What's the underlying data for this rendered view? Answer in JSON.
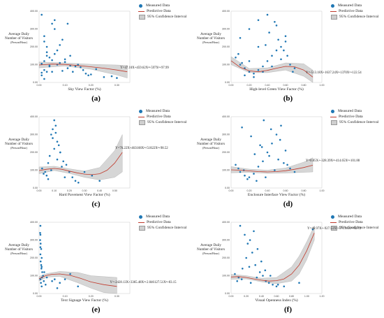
{
  "legend": {
    "measured": "Measured Data",
    "predictive": "Predictive Data",
    "ci": "95% Confidence Interval"
  },
  "ylabel": {
    "line1": "Average Daily",
    "line2": "Number of Visitors",
    "line3": "(Person/Hour)"
  },
  "colors": {
    "points": "#1f77b4",
    "curve": "#c0392b",
    "band": "#c8c8c8"
  },
  "chart_data": [
    {
      "type": "scatter",
      "label": "(a)",
      "xlabel": "Sky View Factor (%)",
      "equation": "Y=47.10X+459.62X²+597X³+97.99",
      "xlim": [
        0,
        0.35
      ],
      "ylim": [
        0,
        400
      ],
      "xticks": [
        "0.00",
        "0.10",
        "0.20",
        "0.30"
      ],
      "yticks": [
        "0.00",
        "100.00",
        "200.00",
        "300.00",
        "400.00"
      ],
      "curve": {
        "x": [
          0,
          0.05,
          0.1,
          0.15,
          0.2,
          0.25,
          0.3,
          0.34
        ],
        "y": [
          98,
          103,
          101,
          95,
          88,
          80,
          70,
          60
        ]
      },
      "band": {
        "x": [
          0,
          0.1,
          0.2,
          0.3,
          0.34
        ],
        "lower": [
          82,
          92,
          74,
          42,
          25
        ],
        "upper": [
          115,
          110,
          102,
          98,
          95
        ]
      },
      "points": {
        "x": [
          0.01,
          0.02,
          0.03,
          0.02,
          0.04,
          0.05,
          0.01,
          0.06,
          0.03,
          0.07,
          0.08,
          0.02,
          0.1,
          0.12,
          0.15,
          0.18,
          0.05,
          0.09,
          0.11,
          0.04,
          0.02,
          0.06,
          0.13,
          0.16,
          0.2,
          0.22,
          0.25,
          0.08,
          0.03,
          0.01,
          0.07,
          0.1,
          0.14,
          0.17,
          0.19,
          0.05,
          0.04,
          0.28,
          0.3,
          0.09,
          0.12,
          0.06,
          0.02,
          0.11,
          0.01,
          0.03
        ],
        "y": [
          380,
          260,
          150,
          120,
          90,
          60,
          40,
          300,
          200,
          180,
          110,
          70,
          130,
          95,
          100,
          50,
          330,
          240,
          80,
          140,
          20,
          160,
          60,
          85,
          45,
          75,
          30,
          210,
          170,
          55,
          100,
          115,
          90,
          70,
          40,
          125,
          95,
          35,
          25,
          65,
          150,
          350,
          230,
          330,
          105,
          60
        ]
      }
    },
    {
      "type": "scatter",
      "label": "(b)",
      "xlabel": "High-level Green View Factor (%)",
      "equation": "Y=-513.18X+1637.24X²-1370X³+122.54",
      "xlim": [
        0,
        1.0
      ],
      "ylim": [
        0,
        400
      ],
      "xticks": [
        "0.00",
        "0.20",
        "0.40",
        "0.60",
        "0.80",
        "1.00"
      ],
      "yticks": [
        "0.00",
        "100.00",
        "200.00",
        "300.00",
        "400.00"
      ],
      "curve": {
        "x": [
          0,
          0.1,
          0.2,
          0.3,
          0.4,
          0.5,
          0.6,
          0.7,
          0.8,
          0.9
        ],
        "y": [
          122,
          85,
          65,
          60,
          68,
          80,
          90,
          88,
          70,
          30
        ]
      },
      "band": {
        "x": [
          0,
          0.2,
          0.4,
          0.6,
          0.8,
          0.9
        ],
        "lower": [
          100,
          55,
          55,
          70,
          35,
          0
        ],
        "upper": [
          145,
          78,
          82,
          110,
          105,
          70
        ]
      },
      "points": {
        "x": [
          0.05,
          0.1,
          0.15,
          0.2,
          0.25,
          0.3,
          0.35,
          0.4,
          0.45,
          0.5,
          0.55,
          0.6,
          0.65,
          0.7,
          0.1,
          0.2,
          0.3,
          0.4,
          0.5,
          0.6,
          0.15,
          0.25,
          0.35,
          0.45,
          0.55,
          0.08,
          0.12,
          0.38,
          0.42,
          0.48,
          0.52,
          0.58,
          0.62,
          0.3,
          0.2,
          0.68
        ],
        "y": [
          140,
          100,
          80,
          60,
          50,
          70,
          90,
          120,
          150,
          180,
          200,
          230,
          100,
          80,
          250,
          300,
          350,
          380,
          320,
          260,
          40,
          30,
          60,
          90,
          130,
          160,
          110,
          210,
          280,
          340,
          240,
          180,
          150,
          200,
          120,
          60
        ]
      }
    },
    {
      "type": "scatter",
      "label": "(c)",
      "xlabel": "Hard Pavement View Factor (%)",
      "equation": "Y=76.22X+463168X²+51822X³+98.52",
      "xlim": [
        0,
        0.6
      ],
      "ylim": [
        0,
        400
      ],
      "xticks": [
        "0.00",
        "0.10",
        "0.20",
        "0.30",
        "0.40",
        "0.50"
      ],
      "yticks": [
        "0.00",
        "100.00",
        "200.00",
        "300.00",
        "400.00"
      ],
      "curve": {
        "x": [
          0,
          0.05,
          0.1,
          0.15,
          0.2,
          0.25,
          0.3,
          0.35,
          0.4,
          0.45,
          0.5,
          0.55
        ],
        "y": [
          98,
          105,
          110,
          105,
          95,
          85,
          78,
          75,
          80,
          100,
          140,
          200
        ]
      },
      "band": {
        "x": [
          0,
          0.1,
          0.2,
          0.3,
          0.4,
          0.5,
          0.55
        ],
        "lower": [
          80,
          98,
          82,
          60,
          45,
          60,
          90
        ],
        "upper": [
          118,
          122,
          108,
          95,
          115,
          210,
          300
        ]
      },
      "points": {
        "x": [
          0.02,
          0.04,
          0.06,
          0.08,
          0.1,
          0.12,
          0.14,
          0.16,
          0.18,
          0.2,
          0.22,
          0.24,
          0.26,
          0.05,
          0.07,
          0.09,
          0.11,
          0.13,
          0.15,
          0.03,
          0.06,
          0.1,
          0.12,
          0.08,
          0.17,
          0.3,
          0.35,
          0.4,
          0.09,
          0.11,
          0.14
        ],
        "y": [
          110,
          90,
          140,
          300,
          380,
          260,
          200,
          150,
          130,
          90,
          60,
          40,
          30,
          70,
          180,
          330,
          350,
          240,
          120,
          80,
          50,
          220,
          160,
          100,
          60,
          90,
          70,
          40,
          280,
          310,
          200
        ]
      }
    },
    {
      "type": "scatter",
      "label": "(d)",
      "xlabel": "Enclosure Interface View Factor (%)",
      "equation": "Y=0.85X+-328.39X²+414.65X³+101.88",
      "xlim": [
        0,
        1.0
      ],
      "ylim": [
        0,
        400
      ],
      "xticks": [
        "0.00",
        "0.20",
        "0.40",
        "0.60",
        "0.80",
        "1.00"
      ],
      "yticks": [
        "0.00",
        "100.00",
        "200.00",
        "300.00",
        "400.00"
      ],
      "curve": {
        "x": [
          0,
          0.1,
          0.2,
          0.3,
          0.4,
          0.5,
          0.6,
          0.7,
          0.8,
          0.9
        ],
        "y": [
          102,
          100,
          96,
          92,
          90,
          92,
          97,
          105,
          115,
          128
        ]
      },
      "band": {
        "x": [
          0,
          0.2,
          0.4,
          0.6,
          0.8,
          0.9
        ],
        "lower": [
          85,
          88,
          82,
          84,
          88,
          90
        ],
        "upper": [
          120,
          106,
          100,
          112,
          145,
          170
        ]
      },
      "points": {
        "x": [
          0.05,
          0.1,
          0.15,
          0.2,
          0.25,
          0.3,
          0.35,
          0.4,
          0.45,
          0.5,
          0.55,
          0.6,
          0.65,
          0.7,
          0.12,
          0.22,
          0.32,
          0.42,
          0.52,
          0.62,
          0.18,
          0.28,
          0.38,
          0.48,
          0.58,
          0.08,
          0.14,
          0.36,
          0.44,
          0.54,
          0.34,
          0.26
        ],
        "y": [
          130,
          90,
          70,
          60,
          80,
          120,
          150,
          200,
          250,
          300,
          350,
          210,
          110,
          90,
          340,
          290,
          240,
          180,
          160,
          130,
          50,
          40,
          60,
          100,
          140,
          110,
          100,
          380,
          330,
          270,
          230,
          190
        ]
      }
    },
    {
      "type": "scatter",
      "label": "(e)",
      "xlabel": "Text Signage View Factor (%)",
      "equation": "Y=-2428.13X+3365.48X²+2.846127.51X³+83.15",
      "xlim": [
        0,
        0.35
      ],
      "ylim": [
        0,
        400
      ],
      "xticks": [
        "0.00",
        "0.10",
        "0.20",
        "0.30"
      ],
      "yticks": [
        "0.00",
        "100.00",
        "200.00",
        "300.00",
        "400.00"
      ],
      "curve": {
        "x": [
          0,
          0.01,
          0.02,
          0.03,
          0.05,
          0.08,
          0.12,
          0.16,
          0.2,
          0.25,
          0.3
        ],
        "y": [
          83,
          90,
          97,
          102,
          108,
          110,
          102,
          85,
          65,
          50,
          40
        ]
      },
      "band": {
        "x": [
          0,
          0.03,
          0.08,
          0.15,
          0.2,
          0.25,
          0.3
        ],
        "lower": [
          70,
          92,
          96,
          60,
          30,
          5,
          0
        ],
        "upper": [
          96,
          112,
          124,
          118,
          100,
          95,
          90
        ]
      },
      "points": {
        "x": [
          0.005,
          0.005,
          0.006,
          0.008,
          0.01,
          0.01,
          0.012,
          0.015,
          0.005,
          0.007,
          0.01,
          0.02,
          0.03,
          0.05,
          0.08,
          0.1,
          0.12,
          0.15,
          0.005,
          0.006,
          0.009,
          0.011,
          0.004,
          0.018,
          0.025,
          0.06,
          0.07,
          0.005,
          0.008,
          0.004
        ],
        "y": [
          380,
          330,
          280,
          250,
          200,
          150,
          120,
          100,
          80,
          60,
          40,
          120,
          90,
          70,
          60,
          80,
          110,
          40,
          220,
          180,
          140,
          90,
          300,
          70,
          50,
          80,
          30,
          260,
          160,
          340
        ]
      }
    },
    {
      "type": "scatter",
      "label": "(f)",
      "xlabel": "Visual Openness Index (%)",
      "equation": "Y=46.97X+-927.53X²+571.98X³+92.72",
      "xlim": [
        0,
        1.2
      ],
      "ylim": [
        0,
        400
      ],
      "xticks": [
        "0.00",
        "0.20",
        "0.40",
        "0.60",
        "0.80",
        "1.00",
        "1.20"
      ],
      "yticks": [
        "0.00",
        "100.00",
        "200.00",
        "300.00",
        "400.00"
      ],
      "curve": {
        "x": [
          0,
          0.1,
          0.2,
          0.3,
          0.4,
          0.5,
          0.6,
          0.7,
          0.8,
          0.9,
          1.0,
          1.1
        ],
        "y": [
          93,
          95,
          90,
          82,
          75,
          70,
          72,
          82,
          110,
          160,
          240,
          340
        ]
      },
      "band": {
        "x": [
          0,
          0.2,
          0.4,
          0.6,
          0.8,
          0.9,
          1.0,
          1.1
        ],
        "lower": [
          80,
          82,
          66,
          55,
          70,
          110,
          190,
          300
        ],
        "upper": [
          108,
          100,
          86,
          90,
          150,
          210,
          290,
          380
        ]
      },
      "points": {
        "x": [
          0.05,
          0.1,
          0.15,
          0.2,
          0.25,
          0.3,
          0.35,
          0.4,
          0.45,
          0.5,
          0.55,
          0.6,
          0.12,
          0.18,
          0.22,
          0.28,
          0.32,
          0.38,
          0.42,
          0.08,
          0.14,
          0.26,
          0.34,
          0.46,
          0.7,
          0.9,
          1.08,
          0.62,
          0.52,
          0.24
        ],
        "y": [
          110,
          90,
          140,
          200,
          300,
          350,
          250,
          180,
          130,
          60,
          50,
          40,
          380,
          330,
          280,
          230,
          160,
          120,
          100,
          70,
          80,
          60,
          90,
          70,
          40,
          60,
          360,
          50,
          100,
          150
        ]
      }
    }
  ]
}
